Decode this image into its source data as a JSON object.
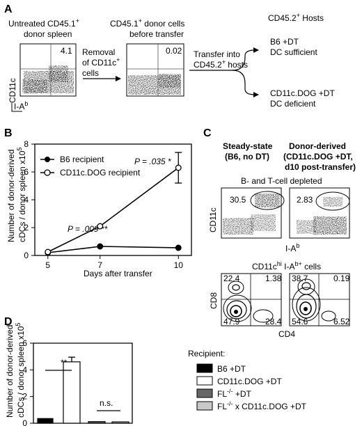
{
  "panelA": {
    "label": "A",
    "donor_title": [
      "Untreated CD45.1",
      "donor spleen"
    ],
    "before_title": [
      "CD45.1",
      "donor cells",
      "before transfer"
    ],
    "plot1_value": "4.1",
    "plot2_value": "0.02",
    "yaxis": "CD11c",
    "xaxis": "I-A",
    "xaxis_sup": "b",
    "removal": [
      "Removal",
      "of CD11c",
      "cells"
    ],
    "transfer": [
      "Transfer into",
      "CD45.2",
      "hosts"
    ],
    "hosts_title": "CD45.2",
    "hosts_title_suffix": "Hosts",
    "host1": [
      "B6 +DT",
      "DC sufficient"
    ],
    "host2": [
      "CD11c.DOG +DT",
      "DC deficient"
    ]
  },
  "panelB": {
    "label": "B",
    "ylabel": [
      "Number of donor-derived",
      "cDCs / donor spleen x10"
    ],
    "xlabel": "Days after transfer",
    "p1": "P = .009 **",
    "p2": "P = .035 *",
    "legend": [
      "B6 recipient",
      "CD11c.DOG recipient"
    ]
  },
  "panelC": {
    "label": "C",
    "col1": [
      "Steady-state",
      "(B6, no DT)"
    ],
    "col2": [
      "Donor-derived",
      "(CD11c.DOG +DT,",
      "d10 post-transfer)"
    ],
    "depleted": "B- and T-cell depleted",
    "yaxis": "CD11c",
    "xaxis": "I-A",
    "xaxis_sup": "b",
    "gate1": "30.5",
    "gate2": "2.83",
    "subset_title": "CD11c",
    "subset_hi": "hi",
    "subset_mid": " I-A",
    "subset_b": "b+",
    "subset_end": " cells",
    "q1": [
      "22.4",
      "1.38",
      "47.9",
      "28.4"
    ],
    "q2": [
      "38.7",
      "0.19",
      "54.6",
      "6.52"
    ],
    "y2": "CD8",
    "x2": "CD4"
  },
  "panelD": {
    "label": "D",
    "ylabel": [
      "Number of donor-derived",
      "cDCs / donor spleen x10"
    ],
    "sig1": "**",
    "sig2": "n.s.",
    "legend_title": "Recipient:",
    "legend": [
      "B6 +DT",
      "CD11c.DOG +DT",
      "FL",
      "FL"
    ]
  },
  "chart_data": [
    {
      "type": "line",
      "x": [
        5,
        7,
        10
      ],
      "xticks": [
        "5",
        "7",
        "10"
      ],
      "ylim": [
        0,
        8
      ],
      "yticks": [
        "0",
        "2",
        "4",
        "6",
        "8"
      ],
      "series": [
        {
          "name": "B6 recipient",
          "values": [
            0.2,
            0.65,
            0.55
          ],
          "errors": [
            0.05,
            0.1,
            0.08
          ],
          "marker": "filled"
        },
        {
          "name": "CD11c.DOG recipient",
          "values": [
            0.25,
            2.1,
            6.3
          ],
          "errors": [
            0.05,
            0.1,
            1.1
          ],
          "marker": "open"
        }
      ]
    },
    {
      "type": "bar",
      "categories": [
        "B6 +DT",
        "CD11c.DOG +DT",
        "FL-/- +DT",
        "FL-/- x CD11c.DOG +DT"
      ],
      "values": [
        0.35,
        4.6,
        0.12,
        0.1
      ],
      "errors": [
        0.04,
        0.35,
        0.03,
        0.03
      ],
      "colors": [
        "#000000",
        "#ffffff",
        "#666666",
        "#c8c8c8"
      ],
      "ylim": [
        0,
        6
      ],
      "yticks": [
        "0",
        "2",
        "4",
        "6"
      ]
    }
  ]
}
